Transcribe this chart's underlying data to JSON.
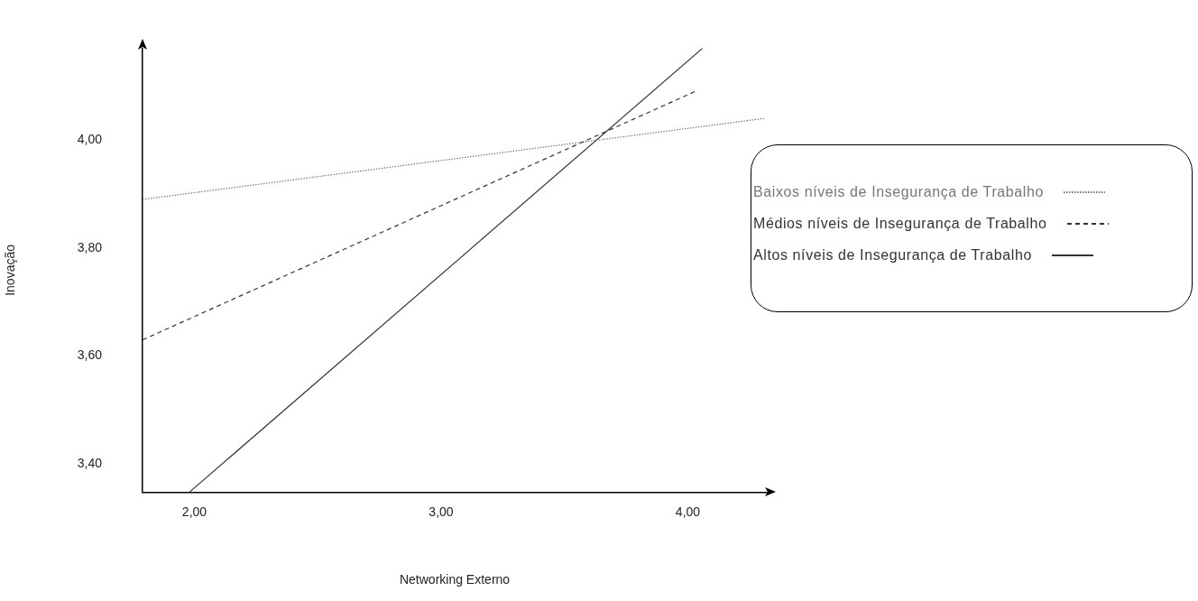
{
  "chart_data": {
    "type": "line",
    "xlabel": "Networking Externo",
    "ylabel": "Inovação",
    "xlim": [
      1.79,
      4.32
    ],
    "ylim": [
      3.348,
      4.17
    ],
    "xticks": [
      {
        "value": 2,
        "label": "2,00"
      },
      {
        "value": 3,
        "label": "3,00"
      },
      {
        "value": 4,
        "label": "4,00"
      }
    ],
    "yticks": [
      {
        "value": 3.4,
        "label": "3,40"
      },
      {
        "value": 3.6,
        "label": "3,60"
      },
      {
        "value": 3.8,
        "label": "3,80"
      },
      {
        "value": 4,
        "label": "4,00"
      }
    ],
    "grid": false,
    "legend": "right",
    "marker": "none",
    "series": [
      {
        "name": "Baixos níveis de Insegurança de Trabalho",
        "color": "#777777",
        "line_style": "dotted",
        "x": [
          1.79,
          4.31
        ],
        "values": [
          3.89,
          4.04
        ]
      },
      {
        "name": "Médios níveis de Insegurança de Trabalho",
        "color": "#333333",
        "line_style": "dashed",
        "x": [
          1.79,
          4.03
        ],
        "values": [
          3.63,
          4.09
        ]
      },
      {
        "name": "Altos níveis de Insegurança de Trabalho",
        "color": "#333333",
        "line_style": "solid",
        "x": [
          1.98,
          4.06
        ],
        "values": [
          3.348,
          4.17
        ]
      }
    ]
  }
}
